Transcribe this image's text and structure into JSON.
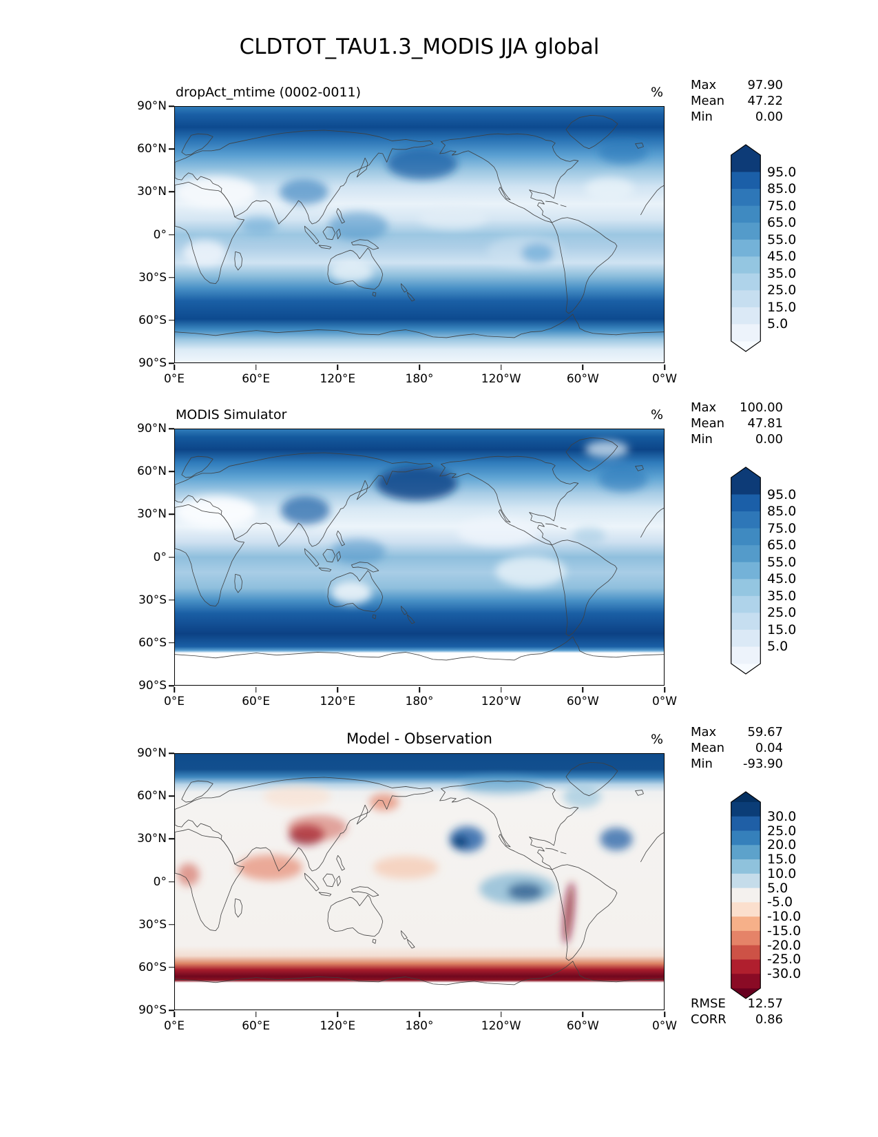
{
  "figure": {
    "title": "CLDTOT_TAU1.3_MODIS JJA global"
  },
  "panels": [
    {
      "title": "dropAct_mtime (0002-0011)",
      "units": "%",
      "stats": {
        "max_label": "Max",
        "max": "97.90",
        "mean_label": "Mean",
        "mean": "47.22",
        "min_label": "Min",
        "min": "0.00"
      },
      "colorbar": {
        "labels": [
          "95.0",
          "85.0",
          "75.0",
          "65.0",
          "55.0",
          "45.0",
          "35.0",
          "25.0",
          "15.0",
          "5.0"
        ],
        "segments": [
          "#0d3b77",
          "#1b5fa8",
          "#2e77b8",
          "#3f8ac1",
          "#549bca",
          "#74b2d8",
          "#94c6e1",
          "#afd3ea",
          "#c6def0",
          "#dbe9f6",
          "#edf3fb"
        ],
        "arrow_top": "#0d3b77",
        "arrow_bottom": "#f7fbff"
      },
      "axes": {
        "y_ticks": [
          "90°N",
          "60°N",
          "30°N",
          "0°",
          "30°S",
          "60°S",
          "90°S"
        ],
        "x_ticks": [
          "0°E",
          "60°E",
          "120°E",
          "180°",
          "120°W",
          "60°W",
          "0°W"
        ]
      }
    },
    {
      "title": "MODIS Simulator",
      "units": "%",
      "stats": {
        "max_label": "Max",
        "max": "100.00",
        "mean_label": "Mean",
        "mean": "47.81",
        "min_label": "Min",
        "min": "0.00"
      },
      "colorbar": {
        "labels": [
          "95.0",
          "85.0",
          "75.0",
          "65.0",
          "55.0",
          "45.0",
          "35.0",
          "25.0",
          "15.0",
          "5.0"
        ],
        "segments": [
          "#0d3b77",
          "#1b5fa8",
          "#2e77b8",
          "#3f8ac1",
          "#549bca",
          "#74b2d8",
          "#94c6e1",
          "#afd3ea",
          "#c6def0",
          "#dbe9f6",
          "#edf3fb"
        ],
        "arrow_top": "#0d3b77",
        "arrow_bottom": "#f7fbff"
      },
      "axes": {
        "y_ticks": [
          "90°N",
          "60°N",
          "30°N",
          "0°",
          "30°S",
          "60°S",
          "90°S"
        ],
        "x_ticks": [
          "0°E",
          "60°E",
          "120°E",
          "180°",
          "120°W",
          "60°W",
          "0°W"
        ]
      }
    },
    {
      "title": "Model - Observation",
      "units": "%",
      "stats": {
        "max_label": "Max",
        "max": "59.67",
        "mean_label": "Mean",
        "mean": "0.04",
        "min_label": "Min",
        "min": "-93.90"
      },
      "colorbar": {
        "labels": [
          "30.0",
          "25.0",
          "20.0",
          "15.0",
          "10.0",
          "5.0",
          "-5.0",
          "-10.0",
          "-15.0",
          "-20.0",
          "-25.0",
          "-30.0"
        ],
        "segments": [
          "#0b3d77",
          "#1f5fa6",
          "#3580bb",
          "#5da2cb",
          "#8fc2dc",
          "#c5dcea",
          "#f4f1ee",
          "#fbdfcd",
          "#f6b089",
          "#e58368",
          "#cd5246",
          "#b01f2e",
          "#8a0b25"
        ],
        "arrow_top": "#053061",
        "arrow_bottom": "#67001f"
      },
      "axes": {
        "y_ticks": [
          "90°N",
          "60°N",
          "30°N",
          "0°",
          "30°S",
          "60°S",
          "90°S"
        ],
        "x_ticks": [
          "0°E",
          "60°E",
          "120°E",
          "180°",
          "120°W",
          "60°W",
          "0°W"
        ]
      }
    }
  ],
  "footer": {
    "rmse_label": "RMSE",
    "rmse": "12.57",
    "corr_label": "CORR",
    "corr": "0.86"
  },
  "chart_data": [
    {
      "type": "heatmap",
      "title": "dropAct_mtime (0002-0011)",
      "units": "%",
      "projection": "equirectangular global map, longitude 0°E to 0°W, latitude 90°N to 90°S",
      "colormap": "Blues",
      "contour_levels": [
        5,
        15,
        25,
        35,
        45,
        55,
        65,
        75,
        85,
        95
      ],
      "stats": {
        "max": 97.9,
        "mean": 47.22,
        "min": 0.0
      },
      "x_tick_labels": [
        "0°E",
        "60°E",
        "120°E",
        "180°",
        "120°W",
        "60°W",
        "0°W"
      ],
      "y_tick_labels": [
        "90°N",
        "60°N",
        "30°N",
        "0°",
        "30°S",
        "60°S",
        "90°S"
      ]
    },
    {
      "type": "heatmap",
      "title": "MODIS Simulator",
      "units": "%",
      "projection": "equirectangular global map, longitude 0°E to 0°W, latitude 90°N to 90°S",
      "colormap": "Blues",
      "contour_levels": [
        5,
        15,
        25,
        35,
        45,
        55,
        65,
        75,
        85,
        95
      ],
      "stats": {
        "max": 100.0,
        "mean": 47.81,
        "min": 0.0
      },
      "x_tick_labels": [
        "0°E",
        "60°E",
        "120°E",
        "180°",
        "120°W",
        "60°W",
        "0°W"
      ],
      "y_tick_labels": [
        "90°N",
        "60°N",
        "30°N",
        "0°",
        "30°S",
        "60°S",
        "90°S"
      ]
    },
    {
      "type": "heatmap",
      "title": "Model - Observation",
      "units": "%",
      "projection": "equirectangular global map, longitude 0°E to 0°W, latitude 90°N to 90°S",
      "colormap": "RdBu diverging",
      "contour_levels": [
        -30,
        -25,
        -20,
        -15,
        -10,
        -5,
        5,
        10,
        15,
        20,
        25,
        30
      ],
      "stats": {
        "max": 59.67,
        "mean": 0.04,
        "min": -93.9,
        "rmse": 12.57,
        "corr": 0.86
      }
    }
  ]
}
